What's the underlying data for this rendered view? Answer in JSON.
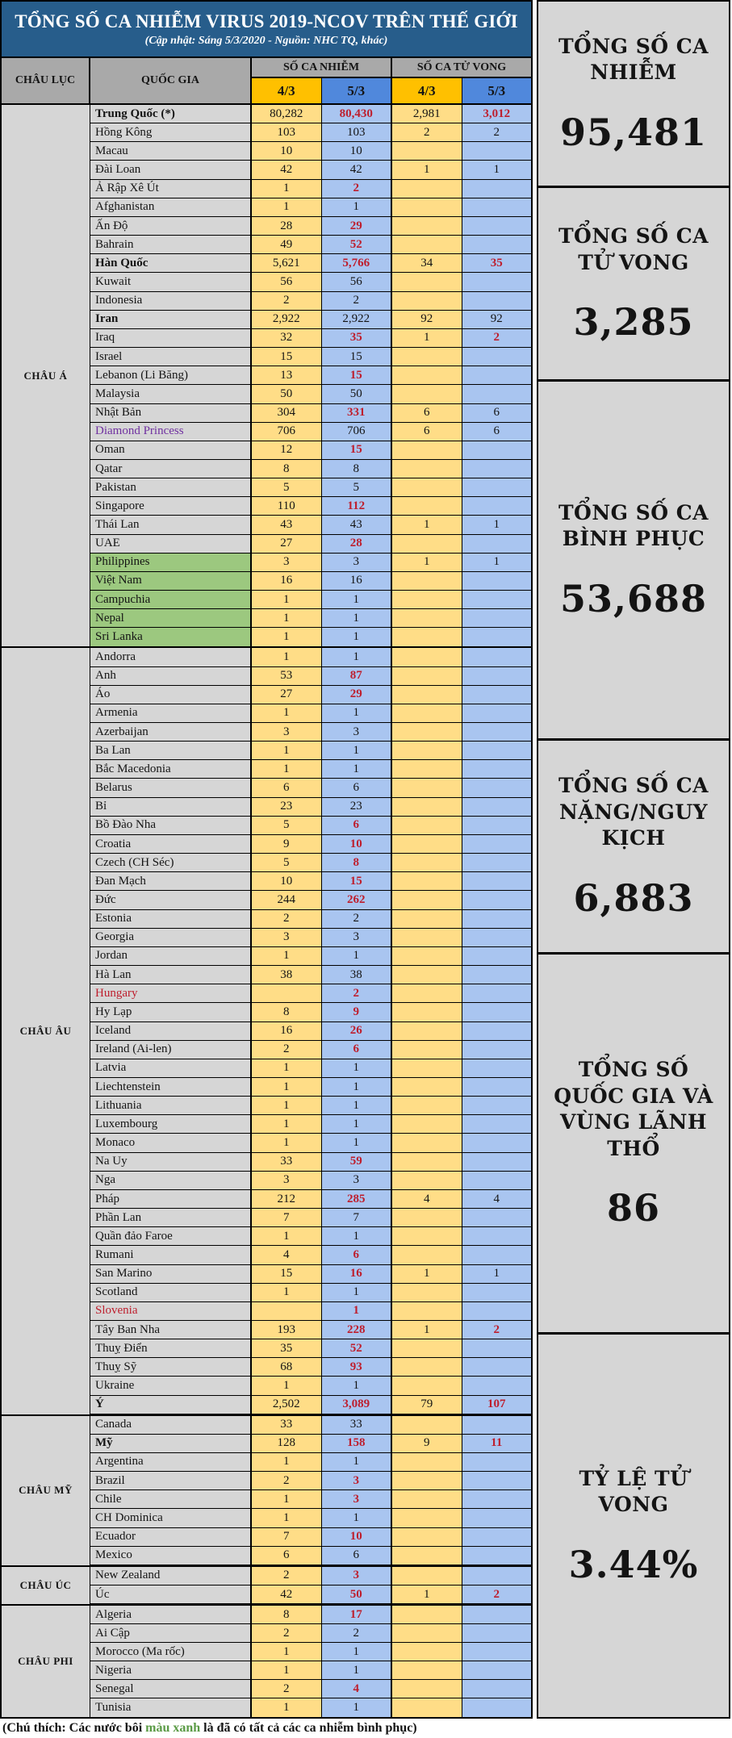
{
  "title": "TỔNG SỐ CA NHIỄM VIRUS 2019-NCOV TRÊN THẾ GIỚI",
  "subtitle": "(Cập nhật: Sáng 5/3/2020 - Nguồn: NHC TQ, khác)",
  "colors": {
    "banner_blue": "#275d8b",
    "header_gray": "#a9a9a9",
    "cell_gray": "#d6d6d6",
    "gold_header": "#ffc000",
    "blue_header": "#5088dc",
    "gold_cell": "#ffdd87",
    "blue_cell": "#a9c5f0",
    "green_cell": "#9cc87f",
    "red_increase": "#be1e2d",
    "purple_name": "#7030a0",
    "green_note": "#5b9b46"
  },
  "table": {
    "headers": {
      "continent": "CHÂU LỤC",
      "country": "QUỐC GIA",
      "infections": "SỐ CA NHIỄM",
      "deaths": "SỐ CA TỬ VONG",
      "date1": "4/3",
      "date2": "5/3"
    },
    "continents": [
      {
        "name": "CHÂU Á",
        "rows": [
          {
            "c": "Trung Quốc (*)",
            "i1": "80,282",
            "i2": "80,430",
            "d1": "2,981",
            "d2": "3,012",
            "s": "bold"
          },
          {
            "c": "Hồng Kông",
            "i1": "103",
            "i2": "103",
            "d1": "2",
            "d2": "2"
          },
          {
            "c": "Macau",
            "i1": "10",
            "i2": "10",
            "d1": "",
            "d2": ""
          },
          {
            "c": "Đài Loan",
            "i1": "42",
            "i2": "42",
            "d1": "1",
            "d2": "1"
          },
          {
            "c": "Ả Rập Xê Út",
            "i1": "1",
            "i2": "2",
            "d1": "",
            "d2": ""
          },
          {
            "c": "Afghanistan",
            "i1": "1",
            "i2": "1",
            "d1": "",
            "d2": ""
          },
          {
            "c": "Ấn Độ",
            "i1": "28",
            "i2": "29",
            "d1": "",
            "d2": ""
          },
          {
            "c": "Bahrain",
            "i1": "49",
            "i2": "52",
            "d1": "",
            "d2": ""
          },
          {
            "c": "Hàn Quốc",
            "i1": "5,621",
            "i2": "5,766",
            "d1": "34",
            "d2": "35",
            "s": "bold"
          },
          {
            "c": "Kuwait",
            "i1": "56",
            "i2": "56",
            "d1": "",
            "d2": ""
          },
          {
            "c": "Indonesia",
            "i1": "2",
            "i2": "2",
            "d1": "",
            "d2": ""
          },
          {
            "c": "Iran",
            "i1": "2,922",
            "i2": "2,922",
            "d1": "92",
            "d2": "92",
            "s": "bold"
          },
          {
            "c": "Iraq",
            "i1": "32",
            "i2": "35",
            "d1": "1",
            "d2": "2"
          },
          {
            "c": "Israel",
            "i1": "15",
            "i2": "15",
            "d1": "",
            "d2": ""
          },
          {
            "c": "Lebanon (Li Băng)",
            "i1": "13",
            "i2": "15",
            "d1": "",
            "d2": ""
          },
          {
            "c": "Malaysia",
            "i1": "50",
            "i2": "50",
            "d1": "",
            "d2": ""
          },
          {
            "c": "Nhật Bản",
            "i1": "304",
            "i2": "331",
            "d1": "6",
            "d2": "6"
          },
          {
            "c": "Diamond Princess",
            "i1": "706",
            "i2": "706",
            "d1": "6",
            "d2": "6",
            "s": "purple"
          },
          {
            "c": "Oman",
            "i1": "12",
            "i2": "15",
            "d1": "",
            "d2": ""
          },
          {
            "c": "Qatar",
            "i1": "8",
            "i2": "8",
            "d1": "",
            "d2": ""
          },
          {
            "c": "Pakistan",
            "i1": "5",
            "i2": "5",
            "d1": "",
            "d2": ""
          },
          {
            "c": "Singapore",
            "i1": "110",
            "i2": "112",
            "d1": "",
            "d2": ""
          },
          {
            "c": "Thái Lan",
            "i1": "43",
            "i2": "43",
            "d1": "1",
            "d2": "1"
          },
          {
            "c": "UAE",
            "i1": "27",
            "i2": "28",
            "d1": "",
            "d2": ""
          },
          {
            "c": "Philippines",
            "i1": "3",
            "i2": "3",
            "d1": "1",
            "d2": "1",
            "s": "green"
          },
          {
            "c": "Việt Nam",
            "i1": "16",
            "i2": "16",
            "d1": "",
            "d2": "",
            "s": "green"
          },
          {
            "c": "Campuchia",
            "i1": "1",
            "i2": "1",
            "d1": "",
            "d2": "",
            "s": "green"
          },
          {
            "c": "Nepal",
            "i1": "1",
            "i2": "1",
            "d1": "",
            "d2": "",
            "s": "green"
          },
          {
            "c": "Sri Lanka",
            "i1": "1",
            "i2": "1",
            "d1": "",
            "d2": "",
            "s": "green"
          }
        ]
      },
      {
        "name": "CHÂU ÂU",
        "rows": [
          {
            "c": "Andorra",
            "i1": "1",
            "i2": "1",
            "d1": "",
            "d2": ""
          },
          {
            "c": "Anh",
            "i1": "53",
            "i2": "87",
            "d1": "",
            "d2": ""
          },
          {
            "c": "Áo",
            "i1": "27",
            "i2": "29",
            "d1": "",
            "d2": ""
          },
          {
            "c": "Armenia",
            "i1": "1",
            "i2": "1",
            "d1": "",
            "d2": ""
          },
          {
            "c": "Azerbaijan",
            "i1": "3",
            "i2": "3",
            "d1": "",
            "d2": ""
          },
          {
            "c": "Ba Lan",
            "i1": "1",
            "i2": "1",
            "d1": "",
            "d2": ""
          },
          {
            "c": "Bắc Macedonia",
            "i1": "1",
            "i2": "1",
            "d1": "",
            "d2": ""
          },
          {
            "c": "Belarus",
            "i1": "6",
            "i2": "6",
            "d1": "",
            "d2": ""
          },
          {
            "c": "Bỉ",
            "i1": "23",
            "i2": "23",
            "d1": "",
            "d2": ""
          },
          {
            "c": "Bồ Đào Nha",
            "i1": "5",
            "i2": "6",
            "d1": "",
            "d2": ""
          },
          {
            "c": "Croatia",
            "i1": "9",
            "i2": "10",
            "d1": "",
            "d2": ""
          },
          {
            "c": "Czech (CH Séc)",
            "i1": "5",
            "i2": "8",
            "d1": "",
            "d2": ""
          },
          {
            "c": "Đan Mạch",
            "i1": "10",
            "i2": "15",
            "d1": "",
            "d2": ""
          },
          {
            "c": "Đức",
            "i1": "244",
            "i2": "262",
            "d1": "",
            "d2": ""
          },
          {
            "c": "Estonia",
            "i1": "2",
            "i2": "2",
            "d1": "",
            "d2": ""
          },
          {
            "c": "Georgia",
            "i1": "3",
            "i2": "3",
            "d1": "",
            "d2": ""
          },
          {
            "c": "Jordan",
            "i1": "1",
            "i2": "1",
            "d1": "",
            "d2": ""
          },
          {
            "c": "Hà Lan",
            "i1": "38",
            "i2": "38",
            "d1": "",
            "d2": ""
          },
          {
            "c": "Hungary",
            "i1": "",
            "i2": "2",
            "d1": "",
            "d2": "",
            "s": "redname"
          },
          {
            "c": "Hy Lạp",
            "i1": "8",
            "i2": "9",
            "d1": "",
            "d2": ""
          },
          {
            "c": "Iceland",
            "i1": "16",
            "i2": "26",
            "d1": "",
            "d2": ""
          },
          {
            "c": "Ireland (Ai-len)",
            "i1": "2",
            "i2": "6",
            "d1": "",
            "d2": ""
          },
          {
            "c": "Latvia",
            "i1": "1",
            "i2": "1",
            "d1": "",
            "d2": ""
          },
          {
            "c": "Liechtenstein",
            "i1": "1",
            "i2": "1",
            "d1": "",
            "d2": ""
          },
          {
            "c": "Lithuania",
            "i1": "1",
            "i2": "1",
            "d1": "",
            "d2": ""
          },
          {
            "c": "Luxembourg",
            "i1": "1",
            "i2": "1",
            "d1": "",
            "d2": ""
          },
          {
            "c": "Monaco",
            "i1": "1",
            "i2": "1",
            "d1": "",
            "d2": ""
          },
          {
            "c": "Na Uy",
            "i1": "33",
            "i2": "59",
            "d1": "",
            "d2": ""
          },
          {
            "c": "Nga",
            "i1": "3",
            "i2": "3",
            "d1": "",
            "d2": ""
          },
          {
            "c": "Pháp",
            "i1": "212",
            "i2": "285",
            "d1": "4",
            "d2": "4"
          },
          {
            "c": "Phần Lan",
            "i1": "7",
            "i2": "7",
            "d1": "",
            "d2": ""
          },
          {
            "c": "Quần đảo Faroe",
            "i1": "1",
            "i2": "1",
            "d1": "",
            "d2": ""
          },
          {
            "c": "Rumani",
            "i1": "4",
            "i2": "6",
            "d1": "",
            "d2": ""
          },
          {
            "c": "San Marino",
            "i1": "15",
            "i2": "16",
            "d1": "1",
            "d2": "1"
          },
          {
            "c": "Scotland",
            "i1": "1",
            "i2": "1",
            "d1": "",
            "d2": ""
          },
          {
            "c": "Slovenia",
            "i1": "",
            "i2": "1",
            "d1": "",
            "d2": "",
            "s": "redname"
          },
          {
            "c": "Tây Ban Nha",
            "i1": "193",
            "i2": "228",
            "d1": "1",
            "d2": "2"
          },
          {
            "c": "Thuỵ Điển",
            "i1": "35",
            "i2": "52",
            "d1": "",
            "d2": ""
          },
          {
            "c": "Thuỵ Sỹ",
            "i1": "68",
            "i2": "93",
            "d1": "",
            "d2": ""
          },
          {
            "c": "Ukraine",
            "i1": "1",
            "i2": "1",
            "d1": "",
            "d2": ""
          },
          {
            "c": "Ý",
            "i1": "2,502",
            "i2": "3,089",
            "d1": "79",
            "d2": "107",
            "s": "bold"
          }
        ]
      },
      {
        "name": "CHÂU MỸ",
        "rows": [
          {
            "c": "Canada",
            "i1": "33",
            "i2": "33",
            "d1": "",
            "d2": ""
          },
          {
            "c": "Mỹ",
            "i1": "128",
            "i2": "158",
            "d1": "9",
            "d2": "11",
            "s": "bold"
          },
          {
            "c": "Argentina",
            "i1": "1",
            "i2": "1",
            "d1": "",
            "d2": ""
          },
          {
            "c": "Brazil",
            "i1": "2",
            "i2": "3",
            "d1": "",
            "d2": ""
          },
          {
            "c": "Chile",
            "i1": "1",
            "i2": "3",
            "d1": "",
            "d2": ""
          },
          {
            "c": "CH Dominica",
            "i1": "1",
            "i2": "1",
            "d1": "",
            "d2": ""
          },
          {
            "c": "Ecuador",
            "i1": "7",
            "i2": "10",
            "d1": "",
            "d2": ""
          },
          {
            "c": "Mexico",
            "i1": "6",
            "i2": "6",
            "d1": "",
            "d2": ""
          }
        ]
      },
      {
        "name": "CHÂU ÚC",
        "rows": [
          {
            "c": "New Zealand",
            "i1": "2",
            "i2": "3",
            "d1": "",
            "d2": ""
          },
          {
            "c": "Úc",
            "i1": "42",
            "i2": "50",
            "d1": "1",
            "d2": "2"
          }
        ]
      },
      {
        "name": "CHÂU PHI",
        "rows": [
          {
            "c": "Algeria",
            "i1": "8",
            "i2": "17",
            "d1": "",
            "d2": ""
          },
          {
            "c": "Ai Cập",
            "i1": "2",
            "i2": "2",
            "d1": "",
            "d2": ""
          },
          {
            "c": "Morocco (Ma rốc)",
            "i1": "1",
            "i2": "1",
            "d1": "",
            "d2": ""
          },
          {
            "c": "Nigeria",
            "i1": "1",
            "i2": "1",
            "d1": "",
            "d2": ""
          },
          {
            "c": "Senegal",
            "i1": "2",
            "i2": "4",
            "d1": "",
            "d2": ""
          },
          {
            "c": "Tunisia",
            "i1": "1",
            "i2": "1",
            "d1": "",
            "d2": ""
          }
        ]
      }
    ]
  },
  "summary": [
    {
      "label": "TỔNG SỐ CA NHIỄM",
      "value": "95,481"
    },
    {
      "label": "TỔNG SỐ CA TỬ VONG",
      "value": "3,285"
    },
    {
      "label": "TỔNG SỐ CA BÌNH PHỤC",
      "value": "53,688"
    },
    {
      "label": "TỔNG SỐ CA NẶNG/NGUY KỊCH",
      "value": "6,883"
    },
    {
      "label": "TỔNG SỐ QUỐC GIA VÀ VÙNG LÃNH THỔ",
      "value": "86"
    },
    {
      "label": "TỶ LỆ TỬ VONG",
      "value": "3.44%"
    }
  ],
  "footnote": {
    "prefix": "(Chú thích: Các nước bôi ",
    "highlight": "màu xanh",
    "suffix": " là đã có tất cả các ca nhiễm bình phục)"
  }
}
